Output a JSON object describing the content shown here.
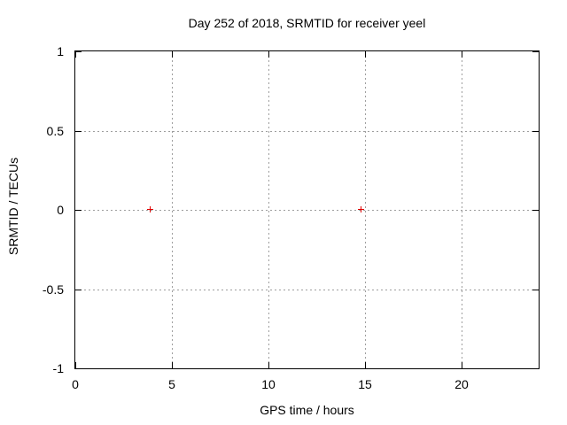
{
  "chart_data": {
    "type": "scatter",
    "title": "Day 252 of 2018, SRMTID for receiver yeel",
    "xlabel": "GPS time / hours",
    "ylabel": "SRMTID / TECUs",
    "xlim": [
      0,
      24
    ],
    "ylim": [
      -1,
      1
    ],
    "xticks": [
      0,
      5,
      10,
      15,
      20
    ],
    "xtick_labels": [
      "0",
      "5",
      "10",
      "15",
      "20"
    ],
    "yticks": [
      -1,
      -0.5,
      0,
      0.5,
      1
    ],
    "ytick_labels": [
      "-1",
      "-0.5",
      "0",
      "0.5",
      "1"
    ],
    "grid": true,
    "grid_style": "dotted",
    "legend": "none",
    "series": [
      {
        "marker": "plus",
        "color": "#e00000",
        "points": [
          {
            "x": 3.9,
            "y": 0
          },
          {
            "x": 14.8,
            "y": 0
          }
        ]
      }
    ]
  },
  "colors": {
    "background": "#ffffff",
    "axis": "#000000",
    "grid": "#9e9e9e",
    "marker": "#e00000"
  }
}
